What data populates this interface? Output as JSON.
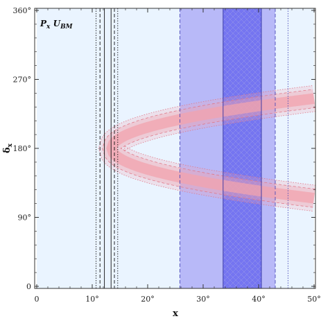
{
  "chart_data": {
    "type": "area",
    "panel_label": {
      "main": "P",
      "sub1": "x",
      "mid": " U",
      "sub2": "BM"
    },
    "xlabel": "x",
    "ylabel_main": "δ",
    "ylabel_sub": "x",
    "xlim": [
      0,
      50
    ],
    "ylim": [
      0,
      360
    ],
    "x_ticks": [
      {
        "value": 0,
        "label": "0"
      },
      {
        "value": 10,
        "label": "10°"
      },
      {
        "value": 20,
        "label": "20°"
      },
      {
        "value": 30,
        "label": "30°"
      },
      {
        "value": 40,
        "label": "40°"
      },
      {
        "value": 50,
        "label": "50°"
      }
    ],
    "y_ticks": [
      {
        "value": 0,
        "label": "0"
      },
      {
        "value": 90,
        "label": "90°"
      },
      {
        "value": 180,
        "label": "180°"
      },
      {
        "value": 270,
        "label": "270°"
      },
      {
        "value": 360,
        "label": "360°"
      }
    ],
    "light_region": {
      "x": [
        0,
        50
      ],
      "color": "#eaf4ff"
    },
    "vertical_bands": [
      {
        "name": "wide band",
        "x": [
          25.8,
          43.0
        ],
        "color": "#b3b3f7"
      },
      {
        "name": "narrow band",
        "x": [
          33.6,
          40.5
        ],
        "color": "#6e6ef0"
      }
    ],
    "band_edge_lines": [
      {
        "x": 25.8,
        "style": "dashed",
        "color": "#4a4ab8"
      },
      {
        "x": 33.6,
        "style": "solid",
        "color": "#3030a0"
      },
      {
        "x": 40.5,
        "style": "solid",
        "color": "#3030a0"
      },
      {
        "x": 43.0,
        "style": "dashed",
        "color": "#4a4ab8"
      },
      {
        "x": 45.3,
        "style": "dotted",
        "color": "#4a4ab8"
      }
    ],
    "vertical_lines": [
      {
        "x": 10.7,
        "style": "dotted"
      },
      {
        "x": 11.4,
        "style": "dashed"
      },
      {
        "x": 12.2,
        "style": "solid"
      },
      {
        "x": 13.4,
        "style": "solid"
      },
      {
        "x": 14.0,
        "style": "dashed"
      },
      {
        "x": 14.6,
        "style": "dotted"
      }
    ],
    "arc": {
      "vertex_x": 13.5,
      "vertex_y": 180,
      "x_end": 50,
      "upper_center_end": 245,
      "lower_center_end": 115,
      "half_width_1sigma": 7,
      "half_width_2sigma": 12,
      "half_width_3sigma": 17,
      "color_fill": "#f2a3ae",
      "color_line": "#e07a8a"
    }
  }
}
